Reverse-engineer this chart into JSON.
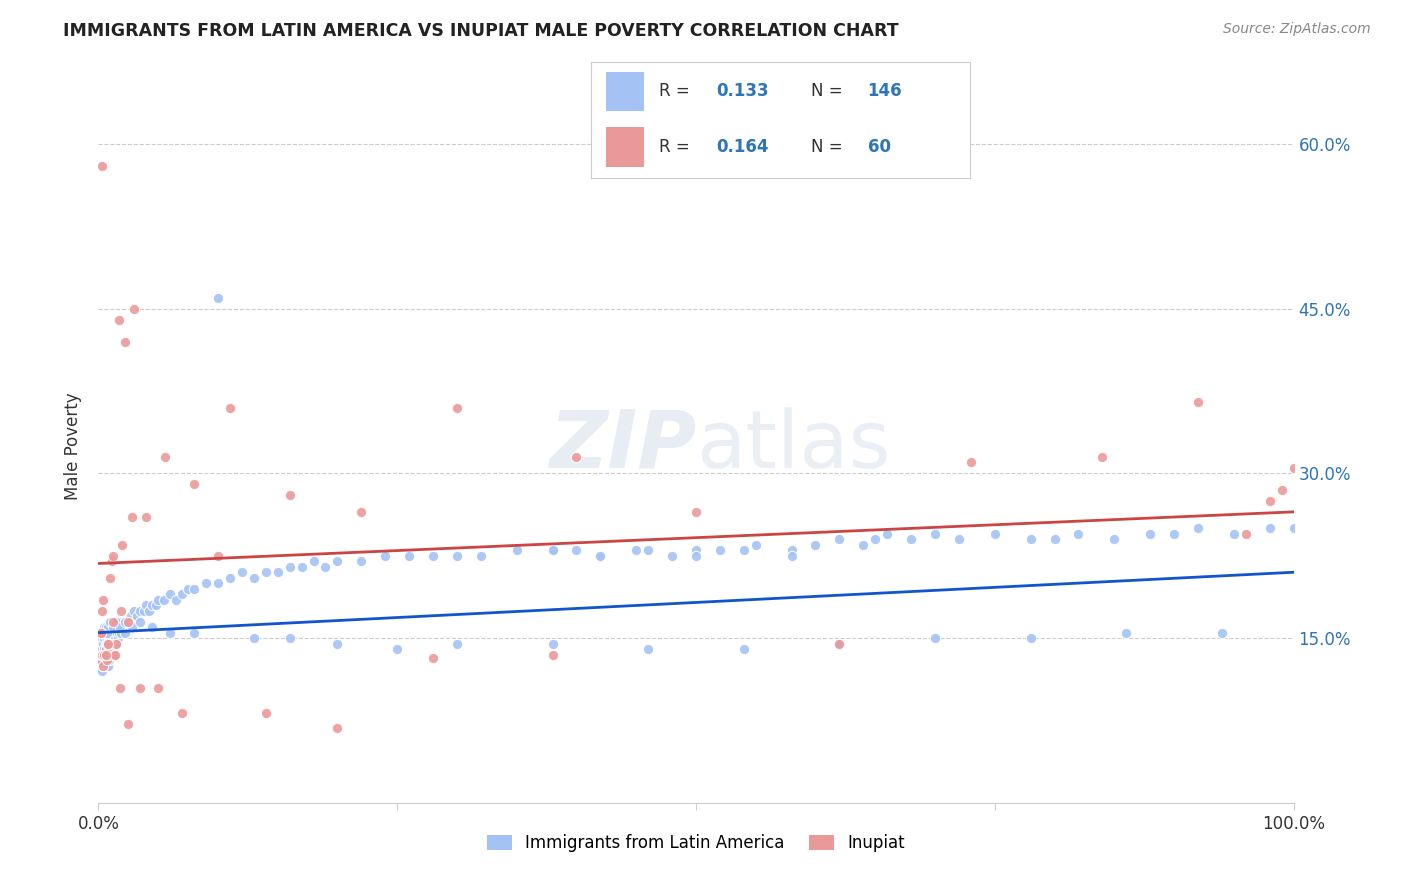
{
  "title": "IMMIGRANTS FROM LATIN AMERICA VS INUPIAT MALE POVERTY CORRELATION CHART",
  "source": "Source: ZipAtlas.com",
  "ylabel": "Male Poverty",
  "x_min": 0.0,
  "x_max": 1.0,
  "y_min": 0.0,
  "y_max": 0.65,
  "y_ticks": [
    0.15,
    0.3,
    0.45,
    0.6
  ],
  "y_tick_labels": [
    "15.0%",
    "30.0%",
    "45.0%",
    "60.0%"
  ],
  "blue_R": 0.133,
  "blue_N": 146,
  "pink_R": 0.164,
  "pink_N": 60,
  "blue_color": "#a4c2f4",
  "pink_color": "#ea9999",
  "blue_line_color": "#1155cc",
  "pink_line_color": "#cc4444",
  "legend_label_blue": "Immigrants from Latin America",
  "legend_label_pink": "Inupiat",
  "blue_scatter_x": [
    0.001,
    0.001,
    0.002,
    0.002,
    0.002,
    0.003,
    0.003,
    0.003,
    0.003,
    0.004,
    0.004,
    0.004,
    0.005,
    0.005,
    0.005,
    0.006,
    0.006,
    0.006,
    0.007,
    0.007,
    0.007,
    0.008,
    0.008,
    0.008,
    0.009,
    0.009,
    0.009,
    0.01,
    0.01,
    0.011,
    0.011,
    0.012,
    0.012,
    0.013,
    0.013,
    0.014,
    0.015,
    0.015,
    0.016,
    0.017,
    0.018,
    0.019,
    0.02,
    0.021,
    0.022,
    0.023,
    0.025,
    0.027,
    0.03,
    0.032,
    0.035,
    0.038,
    0.04,
    0.042,
    0.045,
    0.048,
    0.05,
    0.055,
    0.06,
    0.065,
    0.07,
    0.075,
    0.08,
    0.09,
    0.1,
    0.11,
    0.12,
    0.13,
    0.14,
    0.15,
    0.16,
    0.17,
    0.18,
    0.19,
    0.2,
    0.22,
    0.24,
    0.26,
    0.28,
    0.3,
    0.32,
    0.35,
    0.38,
    0.4,
    0.42,
    0.45,
    0.48,
    0.5,
    0.52,
    0.55,
    0.58,
    0.6,
    0.62,
    0.64,
    0.65,
    0.66,
    0.68,
    0.7,
    0.72,
    0.75,
    0.78,
    0.8,
    0.82,
    0.85,
    0.88,
    0.9,
    0.92,
    0.95,
    0.98,
    1.0,
    0.003,
    0.004,
    0.005,
    0.006,
    0.007,
    0.008,
    0.01,
    0.012,
    0.015,
    0.018,
    0.022,
    0.028,
    0.035,
    0.045,
    0.06,
    0.08,
    0.1,
    0.13,
    0.16,
    0.2,
    0.25,
    0.3,
    0.38,
    0.46,
    0.54,
    0.62,
    0.7,
    0.78,
    0.86,
    0.94,
    0.38,
    0.42,
    0.46,
    0.5,
    0.54,
    0.58
  ],
  "blue_scatter_y": [
    0.13,
    0.14,
    0.125,
    0.135,
    0.145,
    0.12,
    0.13,
    0.14,
    0.15,
    0.125,
    0.135,
    0.145,
    0.13,
    0.14,
    0.15,
    0.125,
    0.135,
    0.145,
    0.13,
    0.14,
    0.15,
    0.125,
    0.135,
    0.145,
    0.13,
    0.14,
    0.15,
    0.14,
    0.15,
    0.135,
    0.145,
    0.14,
    0.15,
    0.145,
    0.155,
    0.15,
    0.145,
    0.155,
    0.15,
    0.155,
    0.16,
    0.155,
    0.165,
    0.16,
    0.155,
    0.165,
    0.165,
    0.17,
    0.175,
    0.17,
    0.175,
    0.175,
    0.18,
    0.175,
    0.18,
    0.18,
    0.185,
    0.185,
    0.19,
    0.185,
    0.19,
    0.195,
    0.195,
    0.2,
    0.2,
    0.205,
    0.21,
    0.205,
    0.21,
    0.21,
    0.215,
    0.215,
    0.22,
    0.215,
    0.22,
    0.22,
    0.225,
    0.225,
    0.225,
    0.225,
    0.225,
    0.23,
    0.23,
    0.23,
    0.225,
    0.23,
    0.225,
    0.23,
    0.23,
    0.235,
    0.23,
    0.235,
    0.24,
    0.235,
    0.24,
    0.245,
    0.24,
    0.245,
    0.24,
    0.245,
    0.24,
    0.24,
    0.245,
    0.24,
    0.245,
    0.245,
    0.25,
    0.245,
    0.25,
    0.25,
    0.155,
    0.155,
    0.16,
    0.16,
    0.155,
    0.16,
    0.165,
    0.16,
    0.165,
    0.16,
    0.165,
    0.16,
    0.165,
    0.16,
    0.155,
    0.155,
    0.46,
    0.15,
    0.15,
    0.145,
    0.14,
    0.145,
    0.145,
    0.14,
    0.14,
    0.145,
    0.15,
    0.15,
    0.155,
    0.155,
    0.23,
    0.225,
    0.23,
    0.225,
    0.23,
    0.225
  ],
  "pink_scatter_x": [
    0.001,
    0.002,
    0.003,
    0.003,
    0.004,
    0.005,
    0.006,
    0.007,
    0.008,
    0.009,
    0.01,
    0.011,
    0.012,
    0.013,
    0.015,
    0.017,
    0.019,
    0.022,
    0.025,
    0.03,
    0.002,
    0.003,
    0.005,
    0.007,
    0.01,
    0.014,
    0.02,
    0.028,
    0.04,
    0.056,
    0.08,
    0.11,
    0.16,
    0.22,
    0.3,
    0.4,
    0.5,
    0.62,
    0.73,
    0.84,
    0.92,
    0.96,
    0.98,
    0.99,
    1.0,
    0.002,
    0.004,
    0.006,
    0.008,
    0.012,
    0.018,
    0.025,
    0.035,
    0.05,
    0.07,
    0.1,
    0.14,
    0.2,
    0.28,
    0.38
  ],
  "pink_scatter_y": [
    0.13,
    0.135,
    0.58,
    0.135,
    0.125,
    0.135,
    0.14,
    0.13,
    0.135,
    0.14,
    0.145,
    0.22,
    0.225,
    0.135,
    0.145,
    0.44,
    0.175,
    0.42,
    0.165,
    0.45,
    0.155,
    0.175,
    0.135,
    0.145,
    0.205,
    0.135,
    0.235,
    0.26,
    0.26,
    0.315,
    0.29,
    0.36,
    0.28,
    0.265,
    0.36,
    0.315,
    0.265,
    0.145,
    0.31,
    0.315,
    0.365,
    0.245,
    0.275,
    0.285,
    0.305,
    0.155,
    0.185,
    0.135,
    0.145,
    0.165,
    0.105,
    0.072,
    0.105,
    0.105,
    0.082,
    0.225,
    0.082,
    0.068,
    0.132,
    0.135
  ]
}
